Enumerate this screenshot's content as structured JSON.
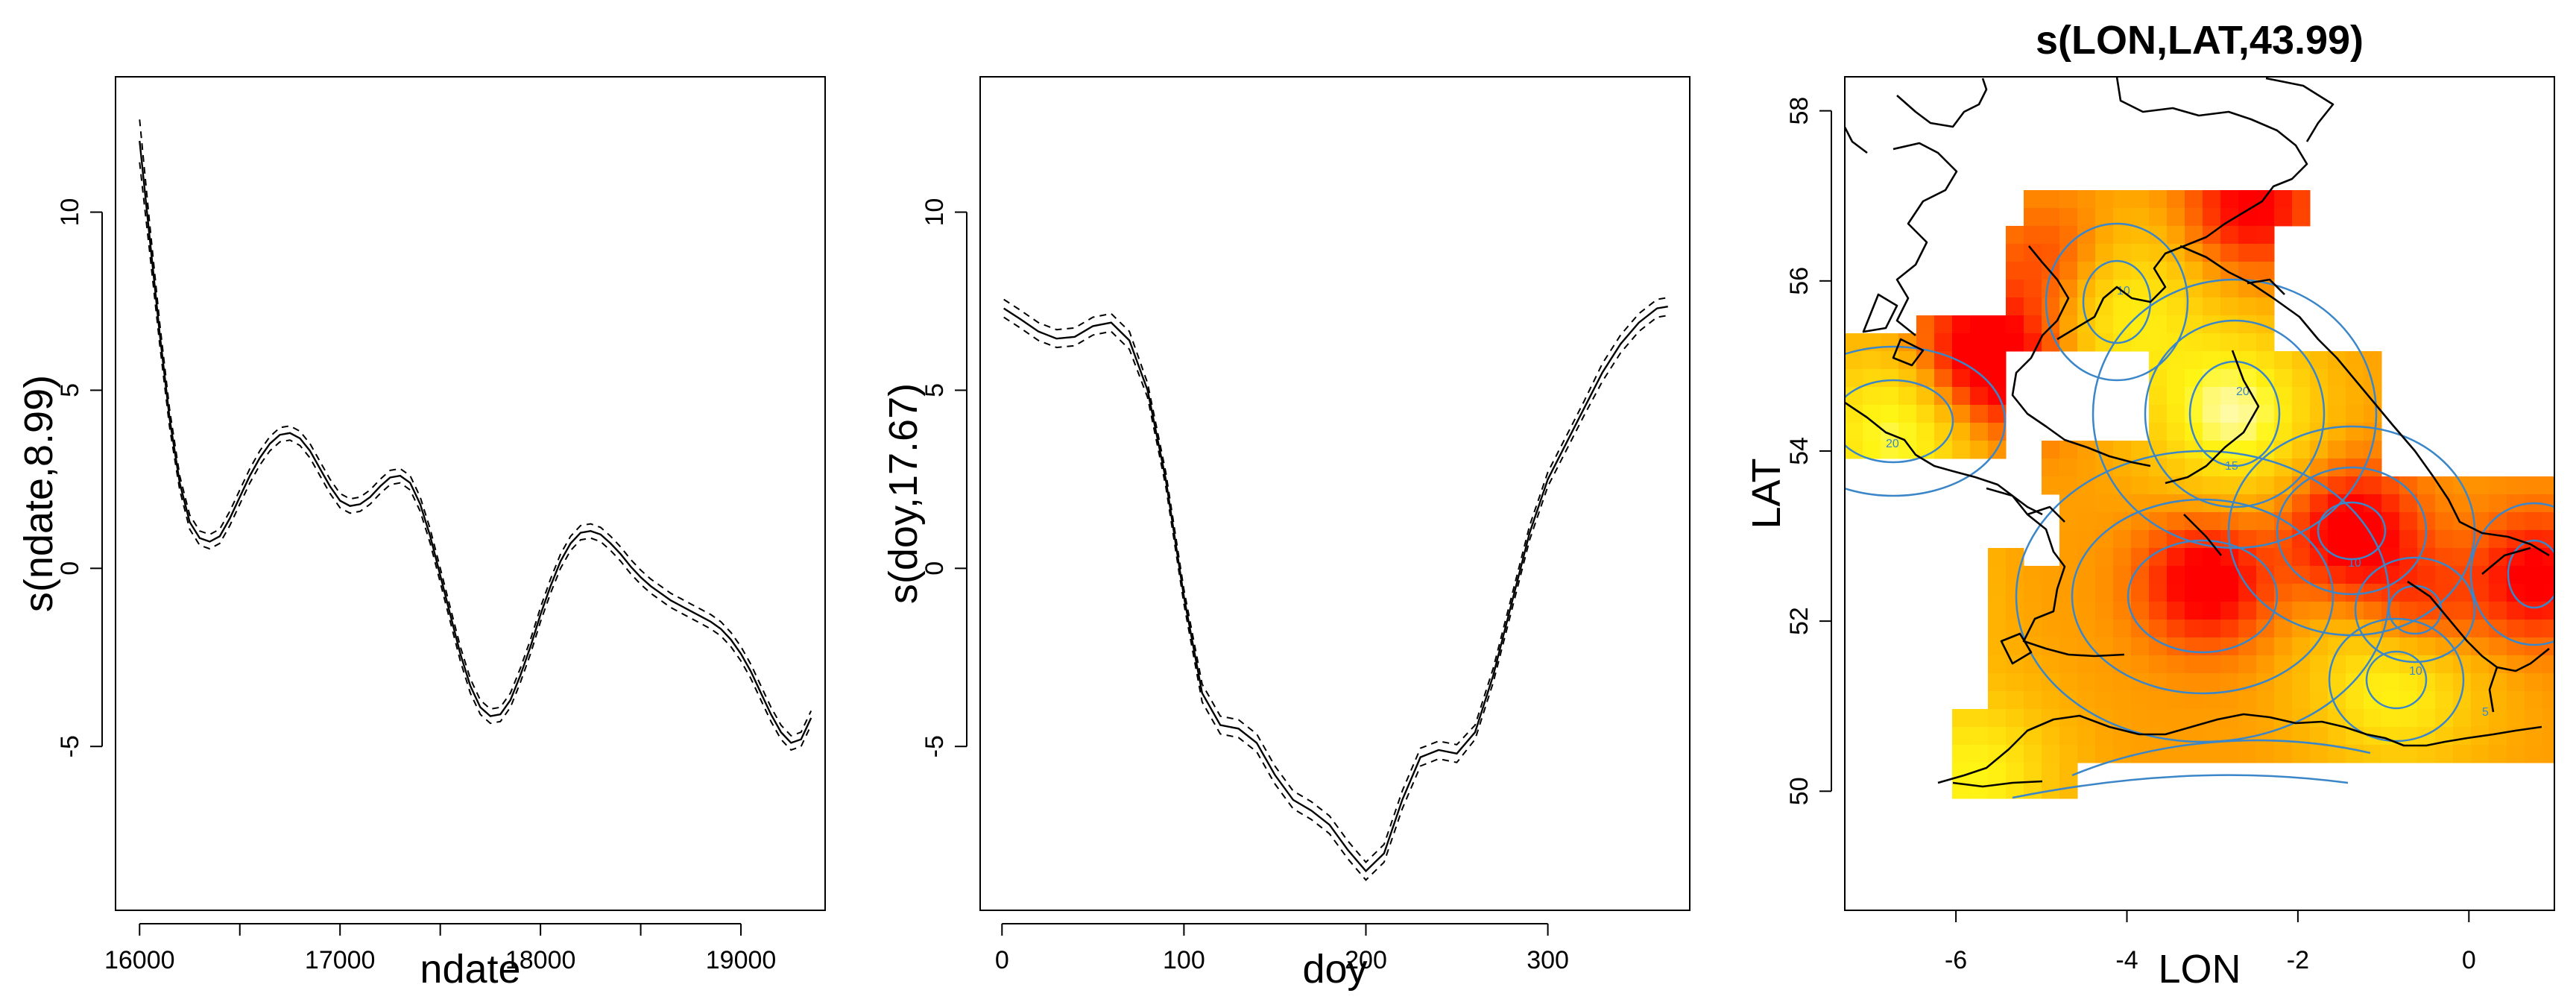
{
  "chart_data": [
    {
      "type": "line",
      "title": "",
      "xlabel": "ndate",
      "ylabel": "s(ndate,8.99)",
      "xlim": [
        15880,
        19420
      ],
      "ylim": [
        -9.6,
        13.8
      ],
      "xticks": [
        16000,
        17000,
        18000,
        19000
      ],
      "xtick_labels": [
        "16000",
        "17000",
        "18000",
        "19000"
      ],
      "xminor_ticks": [
        16500,
        17500,
        18500
      ],
      "yticks": [
        -5,
        0,
        5,
        10
      ],
      "ytick_labels": [
        "-5",
        "0",
        "5",
        "10"
      ],
      "grid": false,
      "series": [
        {
          "style": "solid",
          "x": [
            16000,
            16050,
            16100,
            16150,
            16200,
            16250,
            16300,
            16350,
            16400,
            16450,
            16500,
            16550,
            16600,
            16650,
            16700,
            16750,
            16800,
            16850,
            16900,
            16950,
            17000,
            17050,
            17100,
            17150,
            17200,
            17250,
            17300,
            17350,
            17400,
            17450,
            17500,
            17550,
            17600,
            17650,
            17700,
            17750,
            17800,
            17850,
            17900,
            17950,
            18000,
            18050,
            18100,
            18150,
            18200,
            18250,
            18300,
            18350,
            18400,
            18450,
            18500,
            18550,
            18600,
            18650,
            18700,
            18750,
            18800,
            18850,
            18900,
            18950,
            19000,
            19050,
            19100,
            19150,
            19200,
            19250,
            19300,
            19350
          ],
          "y": [
            12.0,
            9.3,
            6.6,
            4.2,
            2.4,
            1.3,
            0.85,
            0.75,
            0.9,
            1.4,
            2.0,
            2.6,
            3.1,
            3.5,
            3.75,
            3.8,
            3.65,
            3.3,
            2.8,
            2.3,
            1.9,
            1.75,
            1.8,
            2.0,
            2.3,
            2.55,
            2.6,
            2.4,
            1.8,
            0.9,
            -0.2,
            -1.3,
            -2.4,
            -3.3,
            -3.9,
            -4.15,
            -4.1,
            -3.7,
            -3.0,
            -2.2,
            -1.3,
            -0.5,
            0.2,
            0.7,
            1.0,
            1.05,
            0.95,
            0.7,
            0.4,
            0.05,
            -0.25,
            -0.5,
            -0.7,
            -0.9,
            -1.05,
            -1.2,
            -1.35,
            -1.5,
            -1.7,
            -2.0,
            -2.4,
            -2.9,
            -3.5,
            -4.1,
            -4.6,
            -4.9,
            -4.8,
            -4.2
          ]
        },
        {
          "style": "dashed",
          "x": [
            16000,
            16050,
            16100,
            16150,
            16200,
            16250,
            16300,
            16350,
            16400,
            16450,
            16500,
            16550,
            16600,
            16650,
            16700,
            16750,
            16800,
            16850,
            16900,
            16950,
            17000,
            17050,
            17100,
            17150,
            17200,
            17250,
            17300,
            17350,
            17400,
            17450,
            17500,
            17550,
            17600,
            17650,
            17700,
            17750,
            17800,
            17850,
            17900,
            17950,
            18000,
            18050,
            18100,
            18150,
            18200,
            18250,
            18300,
            18350,
            18400,
            18450,
            18500,
            18550,
            18600,
            18650,
            18700,
            18750,
            18800,
            18850,
            18900,
            18950,
            19000,
            19050,
            19100,
            19150,
            19200,
            19250,
            19300,
            19350
          ],
          "y": [
            12.6,
            9.7,
            6.9,
            4.45,
            2.6,
            1.5,
            1.05,
            0.95,
            1.1,
            1.6,
            2.2,
            2.8,
            3.3,
            3.7,
            3.95,
            4.0,
            3.85,
            3.5,
            3.0,
            2.5,
            2.1,
            1.95,
            2.0,
            2.2,
            2.5,
            2.75,
            2.8,
            2.6,
            2.0,
            1.1,
            0.0,
            -1.1,
            -2.2,
            -3.1,
            -3.7,
            -3.95,
            -3.9,
            -3.5,
            -2.8,
            -2.0,
            -1.1,
            -0.3,
            0.4,
            0.9,
            1.2,
            1.25,
            1.15,
            0.9,
            0.6,
            0.25,
            -0.05,
            -0.3,
            -0.5,
            -0.7,
            -0.85,
            -1.0,
            -1.15,
            -1.3,
            -1.5,
            -1.8,
            -2.2,
            -2.7,
            -3.3,
            -3.9,
            -4.4,
            -4.7,
            -4.6,
            -4.0
          ]
        },
        {
          "style": "dashed",
          "x": [
            16000,
            16050,
            16100,
            16150,
            16200,
            16250,
            16300,
            16350,
            16400,
            16450,
            16500,
            16550,
            16600,
            16650,
            16700,
            16750,
            16800,
            16850,
            16900,
            16950,
            17000,
            17050,
            17100,
            17150,
            17200,
            17250,
            17300,
            17350,
            17400,
            17450,
            17500,
            17550,
            17600,
            17650,
            17700,
            17750,
            17800,
            17850,
            17900,
            17950,
            18000,
            18050,
            18100,
            18150,
            18200,
            18250,
            18300,
            18350,
            18400,
            18450,
            18500,
            18550,
            18600,
            18650,
            18700,
            18750,
            18800,
            18850,
            18900,
            18950,
            19000,
            19050,
            19100,
            19150,
            19200,
            19250,
            19300,
            19350
          ],
          "y": [
            11.4,
            8.9,
            6.3,
            3.95,
            2.2,
            1.1,
            0.65,
            0.55,
            0.7,
            1.2,
            1.8,
            2.4,
            2.9,
            3.3,
            3.55,
            3.6,
            3.45,
            3.1,
            2.6,
            2.1,
            1.7,
            1.55,
            1.6,
            1.8,
            2.1,
            2.35,
            2.4,
            2.2,
            1.6,
            0.7,
            -0.4,
            -1.5,
            -2.6,
            -3.5,
            -4.1,
            -4.35,
            -4.3,
            -3.9,
            -3.2,
            -2.4,
            -1.5,
            -0.7,
            0.0,
            0.5,
            0.8,
            0.85,
            0.75,
            0.5,
            0.2,
            -0.15,
            -0.45,
            -0.7,
            -0.9,
            -1.1,
            -1.25,
            -1.4,
            -1.55,
            -1.7,
            -1.9,
            -2.2,
            -2.6,
            -3.1,
            -3.7,
            -4.3,
            -4.8,
            -5.1,
            -5.0,
            -4.4
          ]
        }
      ]
    },
    {
      "type": "line",
      "title": "",
      "xlabel": "doy",
      "ylabel": "s(doy,17.67)",
      "xlim": [
        -12,
        378
      ],
      "ylim": [
        -9.6,
        13.8
      ],
      "xticks": [
        0,
        100,
        200,
        300
      ],
      "xtick_labels": [
        "0",
        "100",
        "200",
        "300"
      ],
      "yticks": [
        -5,
        0,
        5,
        10
      ],
      "ytick_labels": [
        "-5",
        "0",
        "5",
        "10"
      ],
      "grid": false,
      "series": [
        {
          "style": "solid",
          "x": [
            1,
            10,
            20,
            30,
            40,
            50,
            60,
            70,
            80,
            90,
            100,
            110,
            120,
            130,
            140,
            150,
            160,
            170,
            180,
            190,
            200,
            210,
            220,
            230,
            240,
            250,
            260,
            270,
            280,
            290,
            300,
            310,
            320,
            330,
            340,
            350,
            360,
            366
          ],
          "y": [
            7.3,
            7.0,
            6.65,
            6.45,
            6.5,
            6.8,
            6.9,
            6.4,
            5.0,
            2.5,
            -0.8,
            -3.5,
            -4.4,
            -4.5,
            -4.9,
            -5.8,
            -6.5,
            -6.8,
            -7.2,
            -7.9,
            -8.5,
            -8.0,
            -6.5,
            -5.3,
            -5.1,
            -5.2,
            -4.6,
            -3.0,
            -1.0,
            1.0,
            2.5,
            3.5,
            4.5,
            5.5,
            6.3,
            6.9,
            7.3,
            7.35
          ]
        },
        {
          "style": "dashed",
          "x": [
            1,
            10,
            20,
            30,
            40,
            50,
            60,
            70,
            80,
            90,
            100,
            110,
            120,
            130,
            140,
            150,
            160,
            170,
            180,
            190,
            200,
            210,
            220,
            230,
            240,
            250,
            260,
            270,
            280,
            290,
            300,
            310,
            320,
            330,
            340,
            350,
            360,
            366
          ],
          "y": [
            7.55,
            7.25,
            6.9,
            6.7,
            6.75,
            7.05,
            7.15,
            6.65,
            5.2,
            2.7,
            -0.6,
            -3.25,
            -4.15,
            -4.25,
            -4.65,
            -5.55,
            -6.25,
            -6.55,
            -6.95,
            -7.65,
            -8.25,
            -7.75,
            -6.25,
            -5.05,
            -4.85,
            -4.95,
            -4.4,
            -2.8,
            -0.8,
            1.2,
            2.7,
            3.7,
            4.7,
            5.75,
            6.55,
            7.15,
            7.55,
            7.6
          ]
        },
        {
          "style": "dashed",
          "x": [
            1,
            10,
            20,
            30,
            40,
            50,
            60,
            70,
            80,
            90,
            100,
            110,
            120,
            130,
            140,
            150,
            160,
            170,
            180,
            190,
            200,
            210,
            220,
            230,
            240,
            250,
            260,
            270,
            280,
            290,
            300,
            310,
            320,
            330,
            340,
            350,
            360,
            366
          ],
          "y": [
            7.05,
            6.75,
            6.4,
            6.2,
            6.25,
            6.55,
            6.65,
            6.15,
            4.8,
            2.3,
            -1.0,
            -3.75,
            -4.65,
            -4.75,
            -5.15,
            -6.05,
            -6.75,
            -7.05,
            -7.45,
            -8.15,
            -8.75,
            -8.25,
            -6.75,
            -5.55,
            -5.35,
            -5.45,
            -4.8,
            -3.2,
            -1.2,
            0.8,
            2.3,
            3.3,
            4.3,
            5.25,
            6.05,
            6.65,
            7.05,
            7.1
          ]
        }
      ]
    },
    {
      "type": "heatmap",
      "title": "s(LON,LAT,43.99)",
      "xlabel": "LON",
      "ylabel": "LAT",
      "xlim": [
        -7.3,
        1.0
      ],
      "ylim": [
        48.6,
        58.4
      ],
      "xticks": [
        -6,
        -4,
        -2,
        0
      ],
      "xtick_labels": [
        "-6",
        "-4",
        "-2",
        "0"
      ],
      "yticks": [
        50,
        52,
        54,
        56,
        58
      ],
      "ytick_labels": [
        "50",
        "52",
        "54",
        "56",
        "58"
      ],
      "grid": false,
      "color_scale": [
        "#ff0000",
        "#ff8c00",
        "#ffe600",
        "#fffde0"
      ],
      "contour_color": "#3a86c8",
      "contour_labels": [
        "5",
        "10",
        "15",
        "20"
      ],
      "coastline_color": "#000000"
    }
  ]
}
